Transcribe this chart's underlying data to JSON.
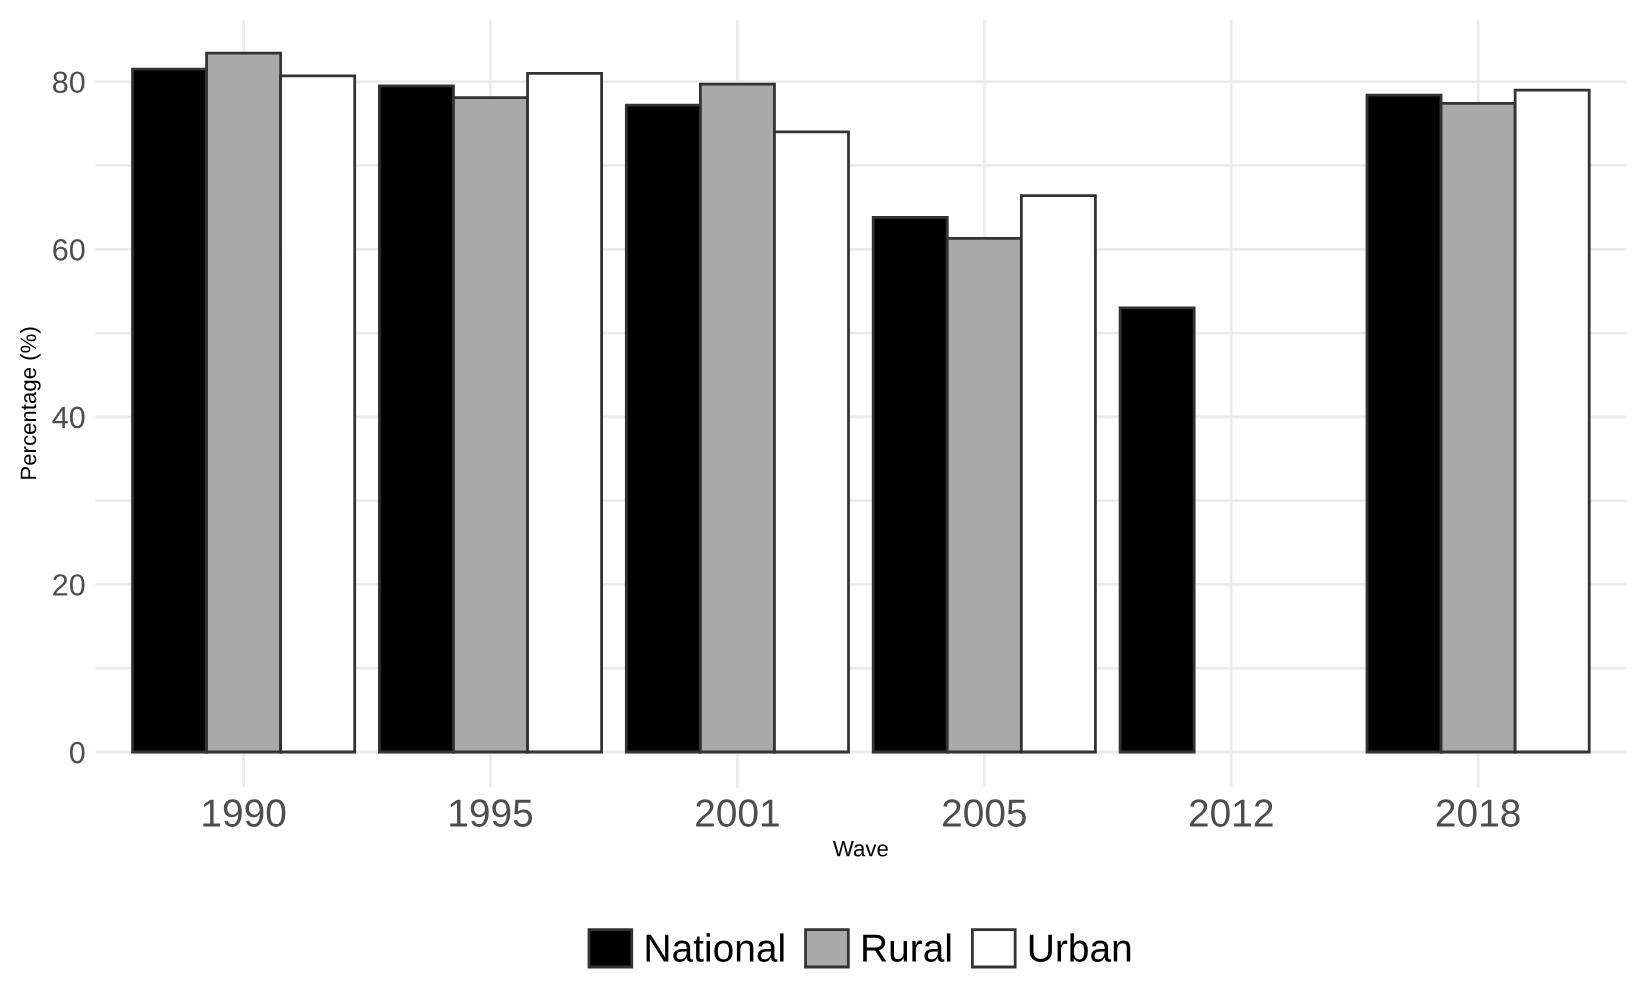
{
  "chart_data": {
    "type": "bar",
    "xlabel": "Wave",
    "ylabel": "Percentage (%)",
    "categories": [
      "1990",
      "1995",
      "2001",
      "2005",
      "2012",
      "2018"
    ],
    "series": [
      {
        "name": "National",
        "color": "#000000",
        "values": [
          81.5,
          79.5,
          77.2,
          63.8,
          53.0,
          78.4
        ]
      },
      {
        "name": "Rural",
        "color": "#a9a9a9",
        "values": [
          83.4,
          78.1,
          79.7,
          61.3,
          null,
          77.4
        ]
      },
      {
        "name": "Urban",
        "color": "#ffffff",
        "values": [
          80.7,
          81.0,
          74.0,
          66.4,
          null,
          79.0
        ]
      }
    ],
    "ylim": [
      -4.2,
      87.4
    ],
    "yticks": [
      0,
      {
        "value": 10,
        "label": null
      },
      20,
      {
        "value": 30,
        "label": null
      },
      40,
      {
        "value": 50,
        "label": null
      },
      60,
      {
        "value": 70,
        "label": null
      },
      80
    ],
    "grid": true,
    "legend": "bottom"
  }
}
